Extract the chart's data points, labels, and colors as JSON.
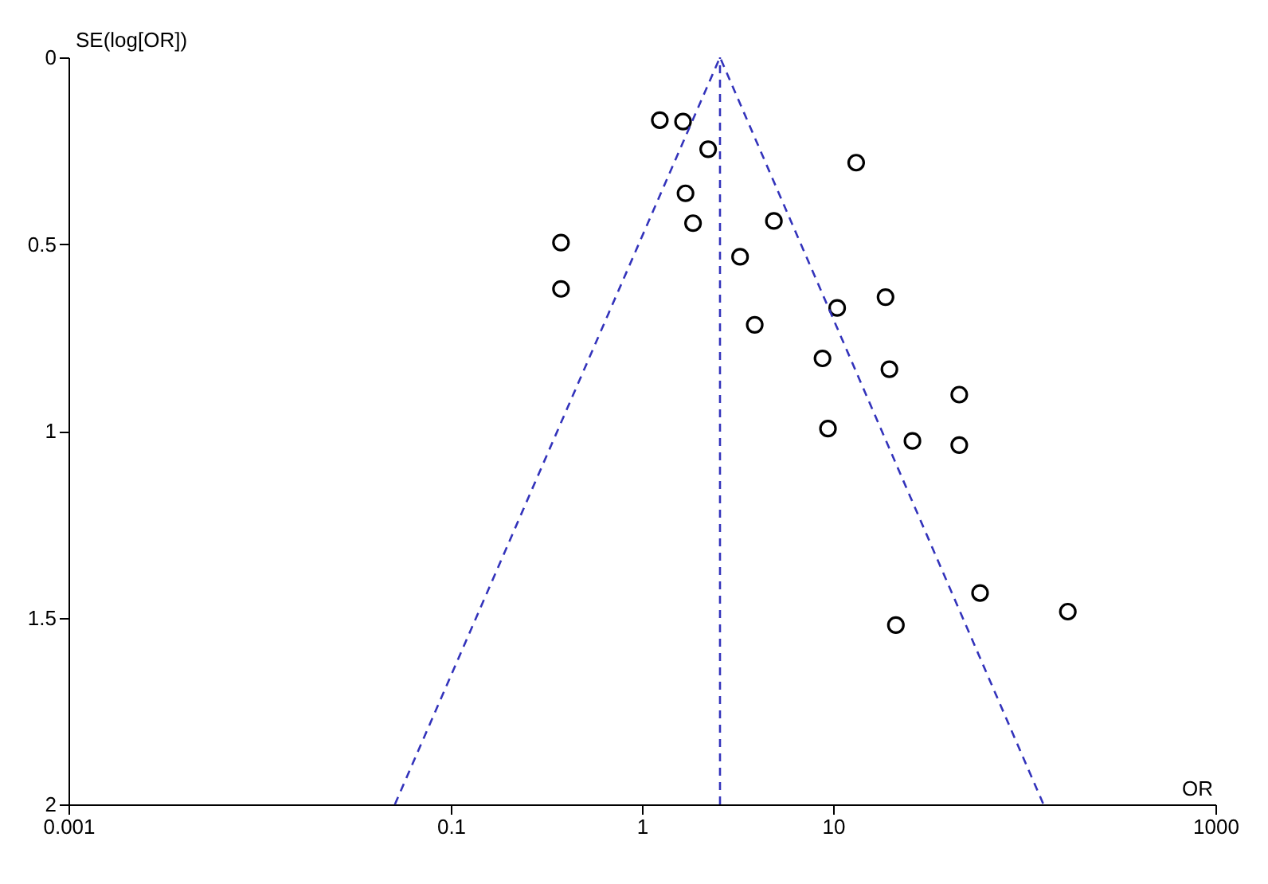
{
  "chart_data": {
    "type": "scatter",
    "xlabel": "OR",
    "ylabel": "SE(log[OR])",
    "log": "x",
    "grid": false,
    "xlim": [
      0.001,
      1000
    ],
    "xticks": [
      0.001,
      0.1,
      1,
      10,
      1000
    ],
    "ylim": [
      2,
      0
    ],
    "yticks": [
      0,
      0.5,
      1,
      1.5,
      2
    ],
    "series": [
      {
        "color": "#000000",
        "marker": "circle",
        "x": [
          1.24,
          1.64,
          2.22,
          13.2,
          1.69,
          1.85,
          4.9,
          0.377,
          3.26,
          0.377,
          10.5,
          18.8,
          3.89,
          8.8,
          19.7,
          9.4,
          26,
          45.7,
          45.7,
          58.7,
          169,
          21.3
        ],
        "values": [
          0.168,
          0.172,
          0.246,
          0.282,
          0.364,
          0.444,
          0.438,
          0.496,
          0.534,
          0.62,
          0.671,
          0.642,
          0.716,
          0.806,
          0.835,
          0.994,
          1.027,
          0.903,
          1.038,
          1.434,
          1.484,
          1.52
        ]
      },
      {
        "type": "line",
        "color": "#3333bb",
        "marker": "none",
        "line_style": "dashed",
        "x": [
          0.051,
          2.56,
          126
        ],
        "values": [
          2,
          0,
          2
        ]
      }
    ],
    "ref_lines": [
      {
        "axis": "x",
        "value": 2.56,
        "color": "#3333bb",
        "line_style": "dashed"
      }
    ]
  }
}
